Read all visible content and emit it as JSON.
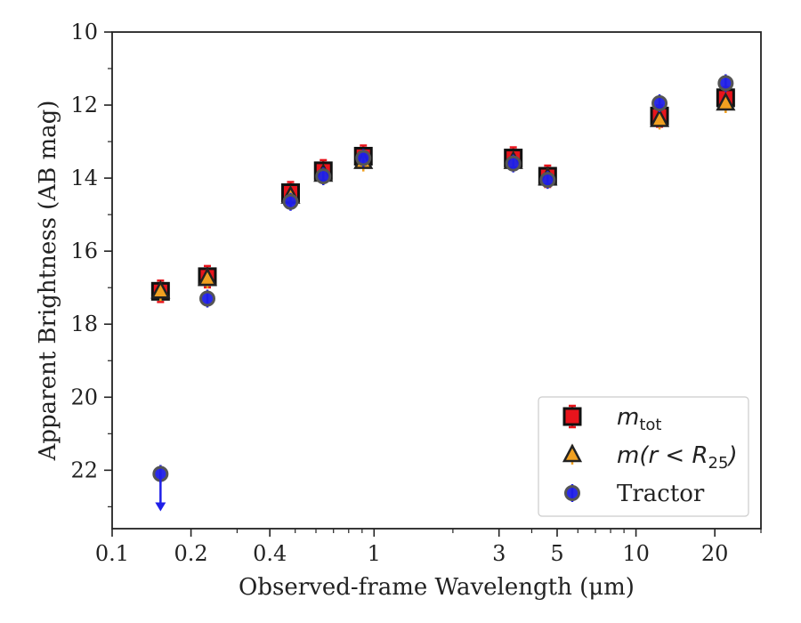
{
  "chart_data": {
    "type": "scatter",
    "xlabel": "Observed-frame Wavelength (μm)",
    "ylabel": "Apparent Brightness (AB mag)",
    "xscale": "log",
    "yinverted": true,
    "xlim": [
      0.1,
      30
    ],
    "ylim": [
      23.6,
      10
    ],
    "x_ticks": [
      {
        "value": 0.1,
        "label": "0.1"
      },
      {
        "value": 0.2,
        "label": "0.2"
      },
      {
        "value": 0.4,
        "label": "0.4"
      },
      {
        "value": 1,
        "label": "1"
      },
      {
        "value": 3,
        "label": "3"
      },
      {
        "value": 5,
        "label": "5"
      },
      {
        "value": 10,
        "label": "10"
      },
      {
        "value": 20,
        "label": "20"
      }
    ],
    "y_ticks": [
      {
        "value": 10,
        "label": "10"
      },
      {
        "value": 12,
        "label": "12"
      },
      {
        "value": 14,
        "label": "14"
      },
      {
        "value": 16,
        "label": "16"
      },
      {
        "value": 18,
        "label": "18"
      },
      {
        "value": 20,
        "label": "20"
      },
      {
        "value": 22,
        "label": "22"
      }
    ],
    "legend_position": "bottom-right",
    "series": [
      {
        "name": "m_tot",
        "legend_main": "m",
        "legend_sub": "tot",
        "marker": "square",
        "color": "#e8141c",
        "x": [
          0.153,
          0.231,
          0.48,
          0.64,
          0.91,
          3.4,
          4.6,
          12.3,
          22.0
        ],
        "y": [
          17.1,
          16.7,
          14.4,
          13.8,
          13.4,
          13.45,
          13.95,
          12.3,
          11.8
        ]
      },
      {
        "name": "m(r < R25)",
        "legend_main": "m(r < R",
        "legend_sub": "25",
        "legend_tail": ")",
        "marker": "triangle",
        "color": "#f0a020",
        "x": [
          0.153,
          0.231,
          0.48,
          0.64,
          0.91,
          3.4,
          4.6,
          12.3,
          22.0
        ],
        "y": [
          17.1,
          16.75,
          14.5,
          13.9,
          13.55,
          13.55,
          14.0,
          12.4,
          11.95
        ]
      },
      {
        "name": "Tractor",
        "legend_main": "Tractor",
        "marker": "circle",
        "color": "#1f1fe8",
        "x": [
          0.153,
          0.231,
          0.48,
          0.64,
          0.91,
          3.4,
          4.6,
          12.3,
          22.0
        ],
        "y": [
          22.1,
          17.3,
          14.65,
          13.95,
          13.45,
          13.6,
          14.05,
          11.95,
          11.4
        ],
        "upper_limit_index": 0
      }
    ]
  }
}
